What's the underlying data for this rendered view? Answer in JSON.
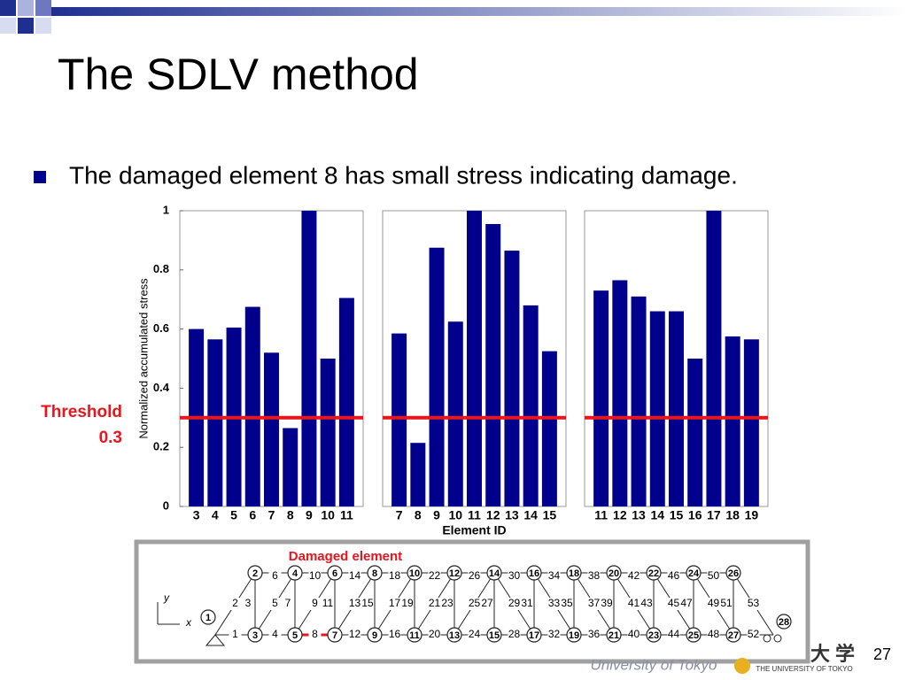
{
  "title": "The SDLV method",
  "bullet": "The damaged element 8 has small stress indicating damage.",
  "threshold": {
    "label": "Threshold",
    "value": 0.3,
    "color": "#e8141e"
  },
  "chart_data": [
    {
      "type": "bar",
      "ylabel": "Normalized accumulated stress",
      "color": "#00008c",
      "categories": [
        "3",
        "4",
        "5",
        "6",
        "7",
        "8",
        "9",
        "10",
        "11"
      ],
      "values": [
        0.6,
        0.565,
        0.605,
        0.675,
        0.52,
        0.265,
        1.0,
        0.5,
        0.705
      ],
      "ylim": [
        0,
        1
      ],
      "yticks": [
        0,
        0.2,
        0.4,
        0.6,
        0.8,
        1
      ]
    },
    {
      "type": "bar",
      "xlabel": "Element ID",
      "color": "#00008c",
      "categories": [
        "7",
        "8",
        "9",
        "10",
        "11",
        "12",
        "13",
        "14",
        "15"
      ],
      "values": [
        0.585,
        0.215,
        0.875,
        0.625,
        1.0,
        0.955,
        0.865,
        0.68,
        0.525
      ],
      "ylim": [
        0,
        1
      ]
    },
    {
      "type": "bar",
      "color": "#00008c",
      "categories": [
        "11",
        "12",
        "13",
        "14",
        "15",
        "16",
        "17",
        "18",
        "19"
      ],
      "values": [
        0.73,
        0.765,
        0.71,
        0.66,
        0.66,
        0.5,
        1.0,
        0.575,
        0.565
      ],
      "ylim": [
        0,
        1
      ]
    }
  ],
  "truss": {
    "annotation": "Damaged element",
    "damaged": "8",
    "axis_y": "y",
    "axis_x": "x",
    "nodes": [
      "1",
      "2",
      "3",
      "4",
      "5",
      "6",
      "7",
      "8",
      "9",
      "10",
      "11",
      "12",
      "13",
      "14",
      "15",
      "16",
      "17",
      "18",
      "19",
      "20",
      "21",
      "22",
      "23",
      "24",
      "25",
      "26",
      "27",
      "28"
    ],
    "elements": [
      "1",
      "2",
      "3",
      "4",
      "5",
      "6",
      "7",
      "8",
      "9",
      "10",
      "11",
      "12",
      "13",
      "14",
      "15",
      "16",
      "17",
      "18",
      "19",
      "20",
      "21",
      "22",
      "23",
      "24",
      "25",
      "26",
      "27",
      "28",
      "29",
      "30",
      "31",
      "32",
      "33",
      "34",
      "35",
      "36",
      "37",
      "38",
      "39",
      "40",
      "41",
      "42",
      "43",
      "44",
      "45",
      "46",
      "47",
      "48",
      "49",
      "50",
      "51",
      "52",
      "53"
    ]
  },
  "footer": {
    "logo_text": "University of Tokyo",
    "kanji": "大 学",
    "university": "THE UNIVERSITY OF TOKYO",
    "page": "27"
  }
}
